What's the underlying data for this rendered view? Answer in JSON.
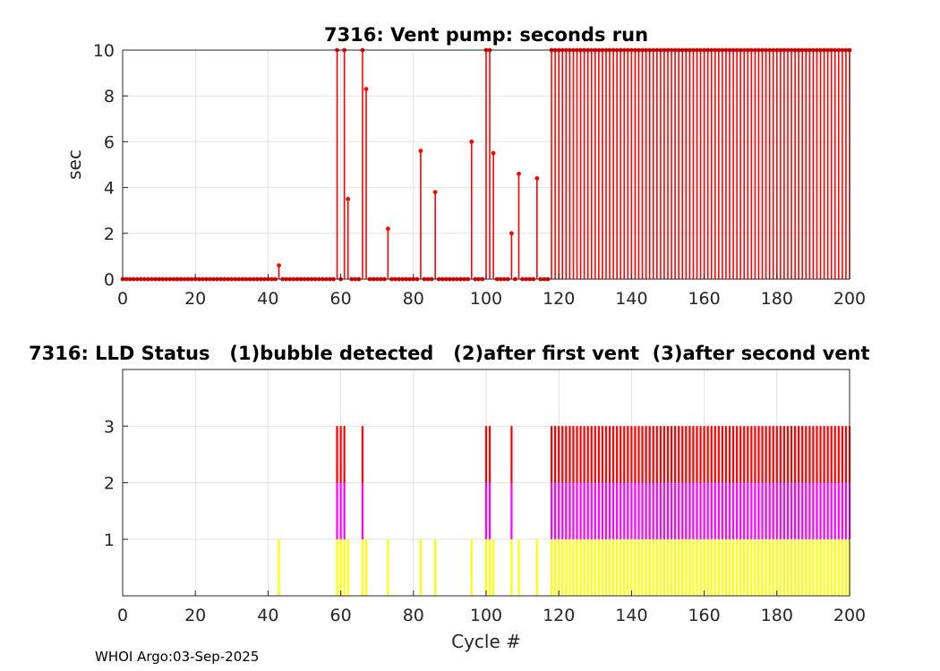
{
  "footer": "WHOI Argo:03-Sep-2025",
  "chart_data": [
    {
      "type": "stem",
      "title": "7316: Vent pump: seconds run",
      "xlabel": "",
      "ylabel": "sec",
      "xlim": [
        0,
        200
      ],
      "ylim": [
        0,
        10
      ],
      "xticks": [
        0,
        20,
        40,
        60,
        80,
        100,
        120,
        140,
        160,
        180,
        200
      ],
      "yticks": [
        0,
        2,
        4,
        6,
        8,
        10
      ],
      "grid": true,
      "color": "#ff0000",
      "x_start": 0,
      "values": [
        0,
        0,
        0,
        0,
        0,
        0,
        0,
        0,
        0,
        0,
        0,
        0,
        0,
        0,
        0,
        0,
        0,
        0,
        0,
        0,
        0,
        0,
        0,
        0,
        0,
        0,
        0,
        0,
        0,
        0,
        0,
        0,
        0,
        0,
        0,
        0,
        0,
        0,
        0,
        0,
        0,
        0,
        0,
        0.6,
        0,
        0,
        0,
        0,
        0,
        0,
        0,
        0,
        0,
        0,
        0,
        0,
        0,
        0,
        0,
        10,
        0,
        10,
        3.5,
        0,
        0,
        0,
        10,
        8.3,
        0,
        0,
        0,
        0,
        0,
        2.2,
        0,
        0,
        0,
        0,
        0,
        0,
        0,
        0,
        5.6,
        0,
        0,
        0,
        3.8,
        0,
        0,
        0,
        0,
        0,
        0,
        0,
        0,
        0,
        6,
        0,
        0,
        0,
        10,
        10,
        5.5,
        0,
        0,
        0,
        0,
        2,
        0,
        4.6,
        0,
        0,
        0,
        0,
        4.4,
        0,
        0,
        0,
        10,
        10,
        10,
        10,
        10,
        10,
        10,
        10,
        10,
        10,
        10,
        10,
        10,
        10,
        10,
        10,
        10,
        10,
        10,
        10,
        10,
        10,
        10,
        10,
        10,
        10,
        10,
        10,
        10,
        10,
        10,
        10,
        10,
        10,
        10,
        10,
        10,
        10,
        10,
        10,
        10,
        10,
        10,
        10,
        10,
        10,
        10,
        10,
        10,
        10,
        10,
        10,
        10,
        10,
        10,
        10,
        10,
        10,
        10,
        10,
        10,
        10,
        10,
        10,
        10,
        10,
        10,
        10,
        10,
        10,
        10,
        10,
        10,
        10,
        10,
        10,
        10,
        10,
        10,
        10,
        10,
        10,
        10
      ]
    },
    {
      "type": "bar",
      "title": "7316: LLD Status   (1)bubble detected   (2)after first vent  (3)after second vent",
      "xlabel": "Cycle #",
      "ylabel": "",
      "xlim": [
        0,
        200
      ],
      "ylim": [
        0,
        4
      ],
      "xticks": [
        0,
        20,
        40,
        60,
        80,
        100,
        120,
        140,
        160,
        180,
        200
      ],
      "yticks": [
        1,
        2,
        3
      ],
      "grid": true,
      "level_colors": [
        "#ffff00",
        "#ff00ff",
        "#ff0000"
      ],
      "x_start": 0,
      "values": [
        0,
        0,
        0,
        0,
        0,
        0,
        0,
        0,
        0,
        0,
        0,
        0,
        0,
        0,
        0,
        0,
        0,
        0,
        0,
        0,
        0,
        0,
        0,
        0,
        0,
        0,
        0,
        0,
        0,
        0,
        0,
        0,
        0,
        0,
        0,
        0,
        0,
        0,
        0,
        0,
        0,
        0,
        0,
        1,
        0,
        0,
        0,
        0,
        0,
        0,
        0,
        0,
        0,
        0,
        0,
        0,
        0,
        0,
        0,
        3,
        3,
        3,
        1,
        0,
        0,
        0,
        3,
        1,
        0,
        0,
        0,
        0,
        0,
        1,
        0,
        0,
        0,
        0,
        0,
        0,
        0,
        0,
        1,
        0,
        0,
        0,
        1,
        0,
        0,
        0,
        0,
        0,
        0,
        0,
        0,
        0,
        1,
        0,
        0,
        0,
        3,
        3,
        1,
        0,
        0,
        0,
        0,
        3,
        0,
        1,
        0,
        0,
        0,
        0,
        1,
        0,
        0,
        0,
        3,
        3,
        3,
        3,
        3,
        3,
        3,
        3,
        3,
        3,
        3,
        3,
        3,
        3,
        3,
        3,
        3,
        3,
        3,
        3,
        3,
        3,
        3,
        3,
        3,
        3,
        3,
        3,
        3,
        3,
        3,
        3,
        3,
        3,
        3,
        3,
        3,
        3,
        3,
        3,
        3,
        3,
        3,
        3,
        3,
        3,
        3,
        3,
        3,
        3,
        3,
        3,
        3,
        3,
        3,
        3,
        3,
        3,
        3,
        3,
        3,
        3,
        3,
        3,
        3,
        3,
        3,
        3,
        3,
        3,
        3,
        3,
        3,
        3,
        3,
        3,
        3,
        3,
        3,
        3,
        3,
        3,
        3
      ]
    }
  ]
}
